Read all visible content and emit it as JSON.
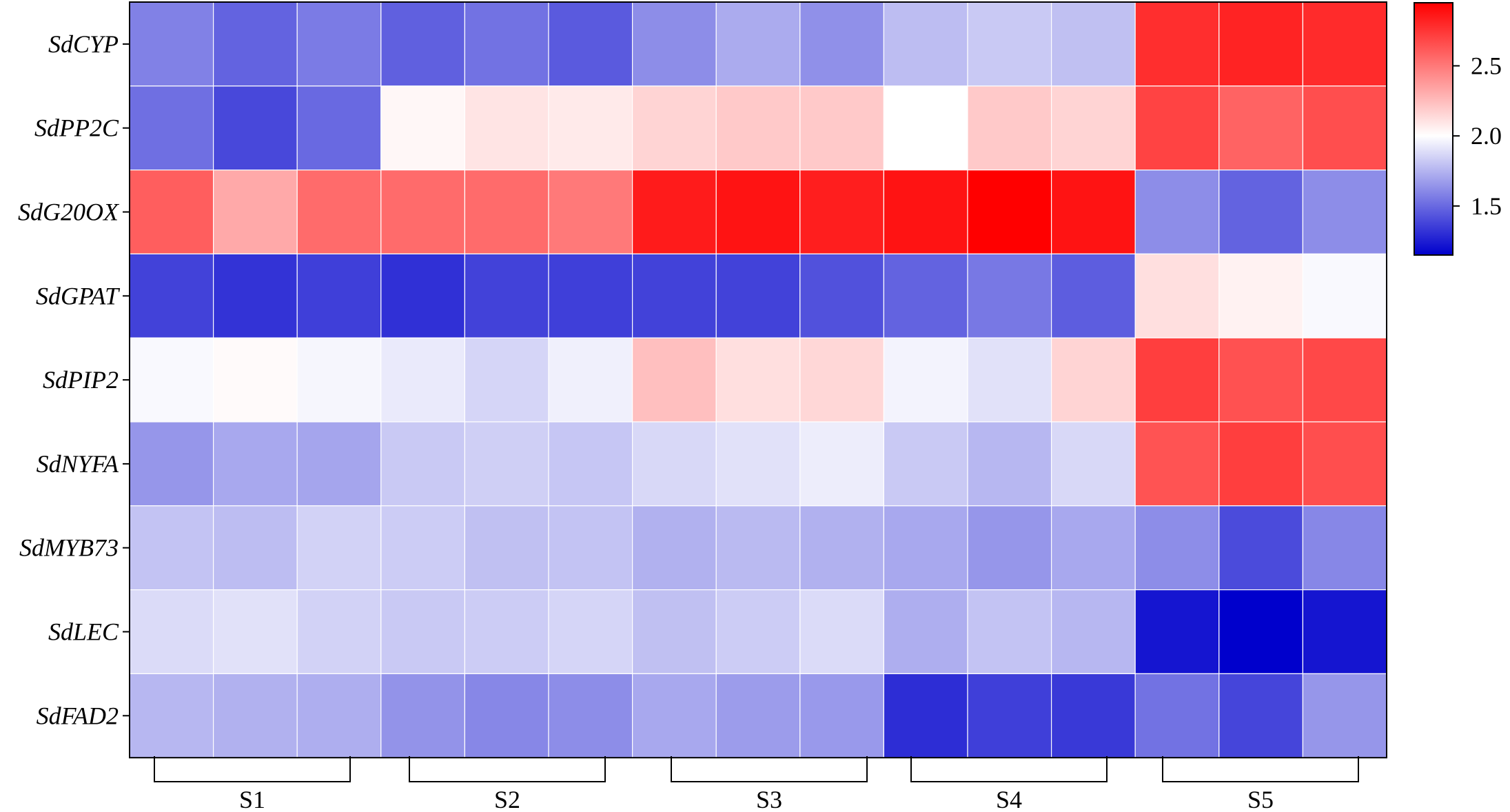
{
  "chart_data": {
    "type": "heatmap",
    "title": "",
    "rows": [
      "SdCYP",
      "SdPP2C",
      "SdG20OX",
      "SdGPAT",
      "SdPIP2",
      "SdNYFA",
      "SdMYB73",
      "SdLEC",
      "SdFAD2"
    ],
    "column_groups": [
      {
        "label": "S1",
        "replicates": 3
      },
      {
        "label": "S2",
        "replicates": 3
      },
      {
        "label": "S3",
        "replicates": 3
      },
      {
        "label": "S4",
        "replicates": 3
      },
      {
        "label": "S5",
        "replicates": 3
      }
    ],
    "values": [
      [
        1.58,
        1.48,
        1.56,
        1.47,
        1.53,
        1.45,
        1.62,
        1.72,
        1.63,
        1.78,
        1.82,
        1.79,
        2.78,
        2.82,
        2.79
      ],
      [
        1.52,
        1.39,
        1.5,
        2.03,
        2.1,
        2.08,
        2.16,
        2.2,
        2.2,
        2.0,
        2.2,
        2.16,
        2.7,
        2.58,
        2.66
      ],
      [
        2.6,
        2.32,
        2.55,
        2.55,
        2.55,
        2.5,
        2.85,
        2.88,
        2.84,
        2.88,
        2.98,
        2.88,
        1.62,
        1.48,
        1.62
      ],
      [
        1.37,
        1.32,
        1.36,
        1.31,
        1.37,
        1.36,
        1.37,
        1.37,
        1.42,
        1.48,
        1.55,
        1.46,
        2.12,
        2.05,
        1.98
      ],
      [
        1.98,
        2.02,
        1.97,
        1.93,
        1.86,
        1.95,
        2.24,
        2.12,
        2.15,
        1.96,
        1.9,
        2.16,
        2.72,
        2.65,
        2.68
      ],
      [
        1.65,
        1.71,
        1.7,
        1.82,
        1.84,
        1.81,
        1.87,
        1.9,
        1.94,
        1.82,
        1.76,
        1.87,
        2.64,
        2.72,
        2.66
      ],
      [
        1.8,
        1.78,
        1.85,
        1.83,
        1.79,
        1.8,
        1.74,
        1.77,
        1.74,
        1.71,
        1.65,
        1.71,
        1.62,
        1.4,
        1.6
      ],
      [
        1.88,
        1.9,
        1.85,
        1.82,
        1.83,
        1.86,
        1.79,
        1.83,
        1.88,
        1.73,
        1.8,
        1.76,
        1.22,
        1.05,
        1.22
      ],
      [
        1.76,
        1.74,
        1.73,
        1.64,
        1.6,
        1.62,
        1.71,
        1.67,
        1.66,
        1.3,
        1.36,
        1.34,
        1.53,
        1.38,
        1.65
      ]
    ],
    "colorbar": {
      "min": 1.15,
      "mid": 2.0,
      "max": 2.95,
      "ticks": [
        1.5,
        2.0,
        2.5
      ],
      "tick_labels": [
        "1.5",
        "2.0",
        "2.5"
      ],
      "colors": {
        "low": "#0000cc",
        "mid": "#ffffff",
        "high": "#ff0000"
      },
      "placement": "right"
    }
  }
}
